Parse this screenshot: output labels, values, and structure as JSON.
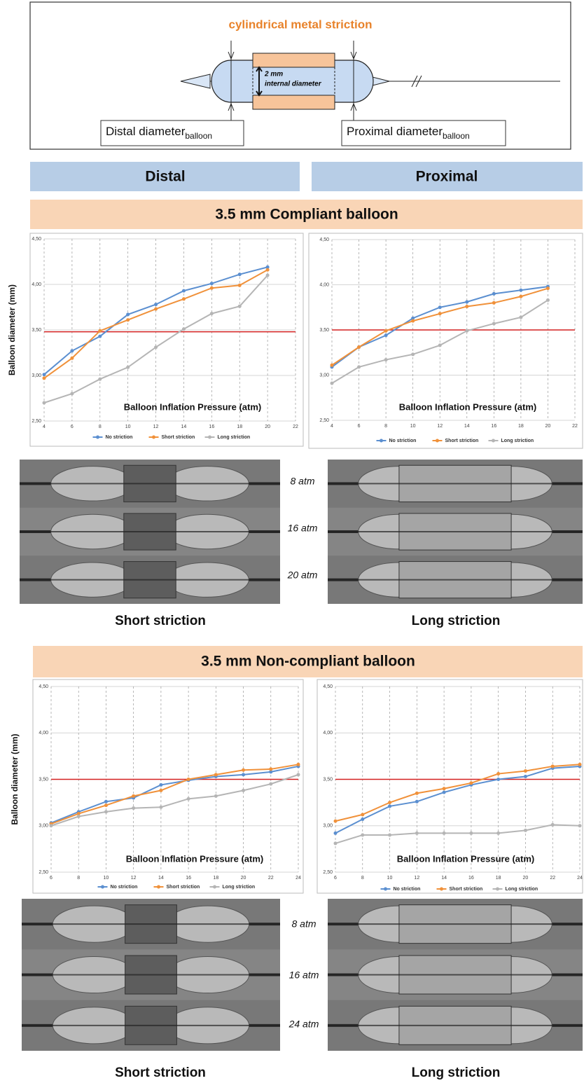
{
  "diagram": {
    "title": "cylindrical metal striction",
    "inner_size": "2 mm",
    "inner_text": "internal diameter",
    "distal_label": "Distal diameter",
    "distal_sub": "balloon",
    "proximal_label": "Proximal diameter",
    "proximal_sub": "balloon"
  },
  "columns": [
    "Distal",
    "Proximal"
  ],
  "sections": [
    {
      "title": "3.5 mm Compliant balloon",
      "photo_labels": [
        "8 atm",
        "16 atm",
        "20 atm"
      ],
      "captions": [
        "Short striction",
        "Long striction"
      ]
    },
    {
      "title": "3.5 mm Non-compliant balloon",
      "photo_labels": [
        "8 atm",
        "16 atm",
        "24 atm"
      ],
      "captions": [
        "Short striction",
        "Long striction"
      ]
    }
  ],
  "chart_data": [
    {
      "type": "line",
      "ylabel": "Balloon diameter (mm)",
      "annotation": "Balloon Inflation Pressure (atm)",
      "x": [
        4,
        6,
        8,
        10,
        12,
        14,
        16,
        18,
        20
      ],
      "series": [
        {
          "name": "No striction",
          "color": "#5b8fd0",
          "values": [
            3.01,
            3.27,
            3.43,
            3.67,
            3.78,
            3.93,
            4.01,
            4.11,
            4.19
          ]
        },
        {
          "name": "Short striction",
          "color": "#f0913a",
          "values": [
            2.97,
            3.19,
            3.49,
            3.61,
            3.73,
            3.84,
            3.96,
            3.99,
            4.16
          ]
        },
        {
          "name": "Long striction",
          "color": "#b5b5b5",
          "values": [
            2.7,
            2.8,
            2.96,
            3.09,
            3.31,
            3.51,
            3.68,
            3.76,
            4.1
          ]
        }
      ],
      "xlim": [
        4,
        22
      ],
      "xticks": [
        4,
        6,
        8,
        10,
        12,
        14,
        16,
        18,
        20,
        22
      ],
      "ylim": [
        2.5,
        4.5
      ],
      "yticks": [
        {
          "value": 2.5,
          "label": "2,50"
        },
        {
          "value": 3.0,
          "label": "3,00"
        },
        {
          "value": 3.5,
          "label": "3,50"
        },
        {
          "value": 4.0,
          "label": "4,00"
        },
        {
          "value": 4.5,
          "label": "4,50"
        }
      ],
      "reference_line": {
        "value": 3.48,
        "color": "#d42020"
      },
      "grid": true
    },
    {
      "type": "line",
      "annotation": "Balloon Inflation Pressure (atm)",
      "x": [
        4,
        6,
        8,
        10,
        12,
        14,
        16,
        18,
        20
      ],
      "series": [
        {
          "name": "No striction",
          "color": "#5b8fd0",
          "values": [
            3.09,
            3.31,
            3.44,
            3.63,
            3.75,
            3.81,
            3.9,
            3.94,
            3.98
          ]
        },
        {
          "name": "Short striction",
          "color": "#f0913a",
          "values": [
            3.11,
            3.31,
            3.49,
            3.6,
            3.68,
            3.76,
            3.8,
            3.87,
            3.96
          ]
        },
        {
          "name": "Long striction",
          "color": "#b5b5b5",
          "values": [
            2.91,
            3.09,
            3.17,
            3.23,
            3.33,
            3.49,
            3.57,
            3.64,
            3.83
          ]
        }
      ],
      "xlim": [
        4,
        22
      ],
      "xticks": [
        4,
        6,
        8,
        10,
        12,
        14,
        16,
        18,
        20,
        22
      ],
      "ylim": [
        2.5,
        4.5
      ],
      "yticks": [
        {
          "value": 2.5,
          "label": "2,50"
        },
        {
          "value": 3.0,
          "label": "3,00"
        },
        {
          "value": 3.5,
          "label": "3,50"
        },
        {
          "value": 4.0,
          "label": "4,00"
        },
        {
          "value": 4.5,
          "label": "4,50"
        }
      ],
      "reference_line": {
        "value": 3.5,
        "color": "#d42020"
      },
      "grid": true
    },
    {
      "type": "line",
      "ylabel": "Balloon diameter (mm)",
      "annotation": "Balloon Inflation Pressure (atm)",
      "x": [
        6,
        8,
        10,
        12,
        14,
        16,
        18,
        20,
        22,
        24
      ],
      "series": [
        {
          "name": "No striction",
          "color": "#5b8fd0",
          "values": [
            3.03,
            3.15,
            3.26,
            3.3,
            3.44,
            3.49,
            3.53,
            3.55,
            3.58,
            3.64
          ]
        },
        {
          "name": "Short striction",
          "color": "#f0913a",
          "values": [
            3.02,
            3.13,
            3.22,
            3.32,
            3.38,
            3.5,
            3.55,
            3.6,
            3.61,
            3.66
          ]
        },
        {
          "name": "Long striction",
          "color": "#b5b5b5",
          "values": [
            3.0,
            3.1,
            3.15,
            3.19,
            3.2,
            3.29,
            3.32,
            3.38,
            3.45,
            3.55
          ]
        }
      ],
      "xlim": [
        6,
        24
      ],
      "xticks": [
        6,
        8,
        10,
        12,
        14,
        16,
        18,
        20,
        22,
        24
      ],
      "ylim": [
        2.5,
        4.5
      ],
      "yticks": [
        {
          "value": 2.5,
          "label": "2,50"
        },
        {
          "value": 3.0,
          "label": "3,00"
        },
        {
          "value": 3.5,
          "label": "3,50"
        },
        {
          "value": 4.0,
          "label": "4,00"
        },
        {
          "value": 4.5,
          "label": "4,50"
        }
      ],
      "reference_line": {
        "value": 3.5,
        "color": "#d42020"
      },
      "grid": true
    },
    {
      "type": "line",
      "annotation": "Balloon Inflation Pressure (atm)",
      "x": [
        6,
        8,
        10,
        12,
        14,
        16,
        18,
        20,
        22,
        24
      ],
      "series": [
        {
          "name": "No striction",
          "color": "#5b8fd0",
          "values": [
            2.92,
            3.07,
            3.21,
            3.26,
            3.36,
            3.44,
            3.5,
            3.53,
            3.62,
            3.64
          ]
        },
        {
          "name": "Short striction",
          "color": "#f0913a",
          "values": [
            3.05,
            3.12,
            3.25,
            3.35,
            3.4,
            3.46,
            3.56,
            3.59,
            3.64,
            3.66
          ]
        },
        {
          "name": "Long striction",
          "color": "#b5b5b5",
          "values": [
            2.81,
            2.9,
            2.9,
            2.92,
            2.92,
            2.92,
            2.92,
            2.95,
            3.01,
            3.0
          ]
        }
      ],
      "xlim": [
        6,
        24
      ],
      "xticks": [
        6,
        8,
        10,
        12,
        14,
        16,
        18,
        20,
        22,
        24
      ],
      "ylim": [
        2.5,
        4.5
      ],
      "yticks": [
        {
          "value": 2.5,
          "label": "2,50"
        },
        {
          "value": 3.0,
          "label": "3,00"
        },
        {
          "value": 3.5,
          "label": "3,50"
        },
        {
          "value": 4.0,
          "label": "4,00"
        },
        {
          "value": 4.5,
          "label": "4,50"
        }
      ],
      "reference_line": {
        "value": 3.5,
        "color": "#d42020"
      },
      "grid": true
    }
  ]
}
